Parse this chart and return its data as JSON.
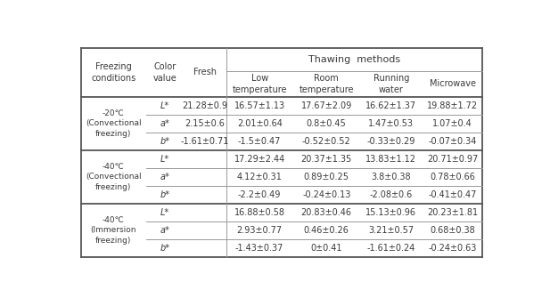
{
  "title": "Thawing  methods",
  "groups": [
    {
      "label": "-20℃\n(Convectional\nfreezing)",
      "rows": [
        {
          "cv": "L*",
          "fresh": "21.28±0.9",
          "low": "16.57±1.13",
          "room": "17.67±2.09",
          "run": "16.62±1.37",
          "micro": "19.88±1.72"
        },
        {
          "cv": "a*",
          "fresh": "2.15±0.6",
          "low": "2.01±0.64",
          "room": "0.8±0.45",
          "run": "1.47±0.53",
          "micro": "1.07±0.4"
        },
        {
          "cv": "b*",
          "fresh": "-1.61±0.71",
          "low": "-1.5±0.47",
          "room": "-0.52±0.52",
          "run": "-0.33±0.29",
          "micro": "-0.07±0.34"
        }
      ]
    },
    {
      "label": "-40℃\n(Convectional\nfreezing)",
      "rows": [
        {
          "cv": "L*",
          "fresh": "",
          "low": "17.29±2.44",
          "room": "20.37±1.35",
          "run": "13.83±1.12",
          "micro": "20.71±0.97"
        },
        {
          "cv": "a*",
          "fresh": "",
          "low": "4.12±0.31",
          "room": "0.89±0.25",
          "run": "3.8±0.38",
          "micro": "0.78±0.66"
        },
        {
          "cv": "b*",
          "fresh": "",
          "low": "-2.2±0.49",
          "room": "-0.24±0.13",
          "run": "-2.08±0.6",
          "micro": "-0.41±0.47"
        }
      ]
    },
    {
      "label": "-40℃\n(Immersion\nfreezing)",
      "rows": [
        {
          "cv": "L*",
          "fresh": "",
          "low": "16.88±0.58",
          "room": "20.83±0.46",
          "run": "15.13±0.96",
          "micro": "20.23±1.81"
        },
        {
          "cv": "a*",
          "fresh": "",
          "low": "2.93±0.77",
          "room": "0.46±0.26",
          "run": "3.21±0.57",
          "micro": "0.68±0.38"
        },
        {
          "cv": "b*",
          "fresh": "",
          "low": "-1.43±0.37",
          "room": "0±0.41",
          "run": "-1.61±0.24",
          "micro": "-0.24±0.63"
        }
      ]
    }
  ],
  "bg_color": "#ffffff",
  "text_color": "#3a3a3a",
  "line_color": "#999999",
  "thick_line_color": "#555555",
  "font_size": 7.0,
  "header_font_size": 7.5
}
